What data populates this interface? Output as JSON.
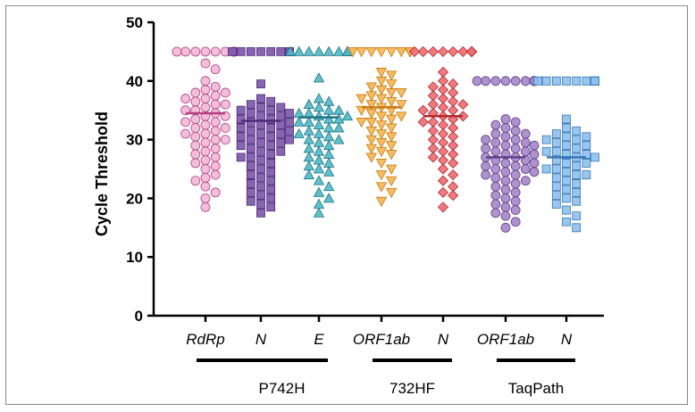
{
  "chart_data": {
    "type": "scatter",
    "subtype": "dot-strip-plot",
    "ylabel": "Cycle Threshold",
    "ylim": [
      0,
      50
    ],
    "yticks": [
      0,
      10,
      20,
      30,
      40,
      50
    ],
    "categories": [
      "RdRp",
      "N",
      "E",
      "ORF1ab",
      "N",
      "ORF1ab",
      "N"
    ],
    "groups": [
      {
        "label": "P742H",
        "categories": [
          0,
          1,
          2
        ]
      },
      {
        "label": "732HF",
        "categories": [
          3,
          4
        ]
      },
      {
        "label": "TaqPath",
        "categories": [
          5,
          6
        ]
      }
    ],
    "series": [
      {
        "name": "RdRp",
        "assay": "P742H",
        "marker": "circle",
        "fill": "#f4b6d8",
        "stroke": "#b0407e",
        "mean": 34.5,
        "values": [
          45,
          45,
          45,
          45,
          45,
          45,
          45,
          45,
          45,
          45,
          45,
          45,
          43,
          42,
          40,
          39,
          38.5,
          38,
          38,
          37.5,
          37,
          37,
          36.5,
          36,
          36,
          35.5,
          35,
          35,
          34.5,
          34,
          34,
          33.5,
          33,
          33,
          32.5,
          32,
          32,
          31.5,
          31,
          31,
          30.5,
          30,
          30,
          29.5,
          29,
          28.5,
          28,
          27.5,
          27,
          26.5,
          26,
          25.5,
          25,
          24,
          23.5,
          23,
          22,
          21,
          20,
          18.5
        ]
      },
      {
        "name": "N",
        "assay": "P742H",
        "marker": "square",
        "fill": "#7a54a8",
        "stroke": "#4b2a78",
        "mean": 33.2,
        "values": [
          45,
          45,
          45,
          45,
          45,
          45,
          45,
          45,
          45,
          45,
          45,
          45,
          45,
          45,
          39.5,
          37,
          36.5,
          36,
          35.5,
          35.5,
          35,
          35,
          34.5,
          34.5,
          34,
          34,
          33.5,
          33.5,
          33,
          33,
          32.5,
          32.5,
          32,
          32,
          31.5,
          31.5,
          31,
          31,
          30.5,
          30.5,
          30,
          30,
          29.5,
          29.5,
          29,
          29,
          28.5,
          28,
          28,
          27.5,
          27,
          27,
          26.5,
          26,
          25.5,
          25,
          24.5,
          24,
          23.5,
          23,
          22.5,
          22,
          21.5,
          21,
          20.5,
          20,
          19.5,
          19,
          18.5,
          17.5
        ]
      },
      {
        "name": "E",
        "assay": "P742H",
        "marker": "triangle",
        "fill": "#4cb8c8",
        "stroke": "#1d7685",
        "mean": 33.8,
        "values": [
          45,
          45,
          45,
          45,
          45,
          45,
          45,
          45,
          45,
          45,
          45,
          45,
          40.5,
          37,
          36.5,
          36,
          35.5,
          35,
          35,
          34.5,
          34.5,
          34,
          34,
          33.5,
          33.5,
          33,
          33,
          32.5,
          32,
          32,
          31.5,
          31,
          31,
          30.5,
          30,
          30,
          29.5,
          29,
          28.5,
          28,
          27.5,
          27,
          26.5,
          26,
          25.5,
          25,
          24.5,
          24,
          23,
          22,
          21,
          20,
          19,
          17.5
        ]
      },
      {
        "name": "ORF1ab",
        "assay": "732HF",
        "marker": "triangle-down",
        "fill": "#f8b44e",
        "stroke": "#c77a10",
        "mean": 35.5,
        "values": [
          45,
          45,
          45,
          45,
          45,
          45,
          45,
          45,
          45,
          45,
          45,
          45,
          45,
          45,
          45,
          41.5,
          41,
          40,
          39.5,
          39,
          38.5,
          38,
          38,
          37.5,
          37,
          37,
          36.5,
          36,
          36,
          35.5,
          35,
          35,
          34.5,
          34,
          34,
          33.5,
          33,
          33,
          32.5,
          32,
          31.5,
          31,
          30.5,
          30,
          29.5,
          29,
          28.5,
          28,
          27.5,
          27,
          26,
          25,
          24,
          23,
          22,
          21,
          19.5
        ]
      },
      {
        "name": "N",
        "assay": "732HF",
        "marker": "diamond",
        "fill": "#ee6a70",
        "stroke": "#b3262e",
        "mean": 34.0,
        "values": [
          45,
          45,
          45,
          45,
          45,
          45,
          45,
          45,
          45,
          45,
          45,
          45,
          45,
          45,
          41.5,
          40,
          39.5,
          39,
          38.5,
          38,
          37.5,
          37,
          36.5,
          36,
          36,
          35.5,
          35,
          35,
          34.5,
          34,
          34,
          33.5,
          33,
          33,
          32.5,
          32,
          31.5,
          31,
          30.5,
          30,
          29.5,
          29,
          28.5,
          28,
          27.5,
          27,
          26.5,
          26,
          25,
          24,
          23,
          22,
          21,
          20.5,
          18.5
        ]
      },
      {
        "name": "ORF1ab",
        "assay": "TaqPath",
        "marker": "circle",
        "fill": "#a486c8",
        "stroke": "#5e3f8c",
        "mean": 27.0,
        "values": [
          40,
          40,
          40,
          40,
          40,
          40,
          40,
          40,
          40,
          40,
          40,
          40,
          40,
          33.5,
          33,
          32.5,
          32,
          31.5,
          31,
          31,
          30.5,
          30,
          30,
          29.5,
          29.5,
          29,
          29,
          28.5,
          28.5,
          28,
          28,
          27.5,
          27.5,
          27,
          27,
          26.5,
          26.5,
          26,
          26,
          25.5,
          25.5,
          25,
          25,
          24.5,
          24.5,
          24,
          24,
          23.5,
          23,
          23,
          22.5,
          22,
          21.5,
          21,
          20.5,
          20,
          19.5,
          19,
          18.5,
          18,
          17.5,
          17,
          16,
          15
        ]
      },
      {
        "name": "N",
        "assay": "TaqPath",
        "marker": "square",
        "fill": "#8cc0ec",
        "stroke": "#3a78b8",
        "mean": 27.0,
        "values": [
          40,
          40,
          40,
          40,
          40,
          40,
          40,
          40,
          40,
          40,
          33.5,
          32,
          31.5,
          31,
          30.5,
          30.5,
          30,
          30,
          29.5,
          29,
          29,
          28.5,
          28,
          28,
          27.5,
          27.5,
          27,
          27,
          26.5,
          26,
          26,
          25.5,
          25,
          25,
          24.5,
          24,
          24,
          23.5,
          23,
          22.5,
          22,
          21.5,
          21,
          20.5,
          20,
          19.5,
          19,
          18,
          17,
          16,
          15
        ]
      }
    ],
    "grid": false,
    "legend": "none"
  }
}
